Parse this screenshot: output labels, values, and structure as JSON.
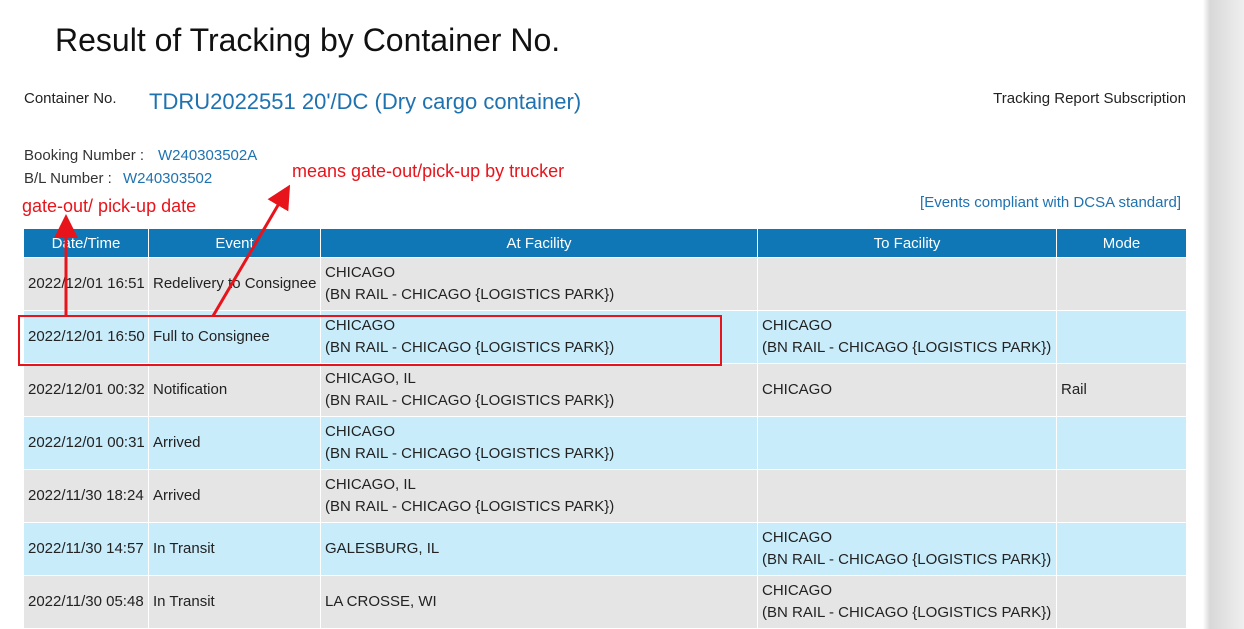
{
  "header": {
    "title": "Result of Tracking by Container No.",
    "container_label": "Container No.",
    "container_value": "TDRU2022551 20'/DC (Dry cargo container)",
    "subscription_link": "Tracking Report Subscription",
    "booking_label": "Booking Number :",
    "booking_value": "W240303502A",
    "bl_label": "B/L Number :",
    "bl_value": "W240303502",
    "dcsa_link": "[Events compliant with DCSA standard]"
  },
  "annotations": {
    "trucker_note": "means gate-out/pick-up by trucker",
    "date_note": "gate-out/ pick-up date"
  },
  "table": {
    "columns": [
      "Date/Time",
      "Event",
      "At Facility",
      "To Facility",
      "Mode"
    ],
    "rows": [
      {
        "datetime": "2022/12/01 16:51",
        "event": "Redelivery to Consignee",
        "at_facility": [
          "CHICAGO",
          "(BN RAIL - CHICAGO {LOGISTICS PARK})"
        ]
      },
      {
        "datetime": "2022/12/01 16:50",
        "event": "Full to Consignee",
        "at_facility": [
          "CHICAGO",
          "(BN RAIL - CHICAGO {LOGISTICS PARK})"
        ],
        "to_facility": [
          "CHICAGO",
          "(BN RAIL - CHICAGO {LOGISTICS PARK})"
        ]
      },
      {
        "datetime": "2022/12/01 00:32",
        "event": "Notification",
        "at_facility": [
          "CHICAGO, IL",
          "(BN RAIL - CHICAGO {LOGISTICS PARK})"
        ],
        "to_facility": [
          "CHICAGO"
        ],
        "mode": "Rail"
      },
      {
        "datetime": "2022/12/01 00:31",
        "event": "Arrived",
        "at_facility": [
          "CHICAGO",
          "(BN RAIL - CHICAGO {LOGISTICS PARK})"
        ]
      },
      {
        "datetime": "2022/11/30 18:24",
        "event": "Arrived",
        "at_facility": [
          "CHICAGO, IL",
          "(BN RAIL - CHICAGO {LOGISTICS PARK})"
        ]
      },
      {
        "datetime": "2022/11/30 14:57",
        "event": "In Transit",
        "at_facility": [
          "GALESBURG, IL"
        ],
        "to_facility": [
          "CHICAGO",
          "(BN RAIL - CHICAGO {LOGISTICS PARK})"
        ]
      },
      {
        "datetime": "2022/11/30 05:48",
        "event": "In Transit",
        "at_facility": [
          "LA CROSSE, WI"
        ],
        "to_facility": [
          "CHICAGO",
          "(BN RAIL - CHICAGO {LOGISTICS PARK})"
        ]
      }
    ]
  }
}
